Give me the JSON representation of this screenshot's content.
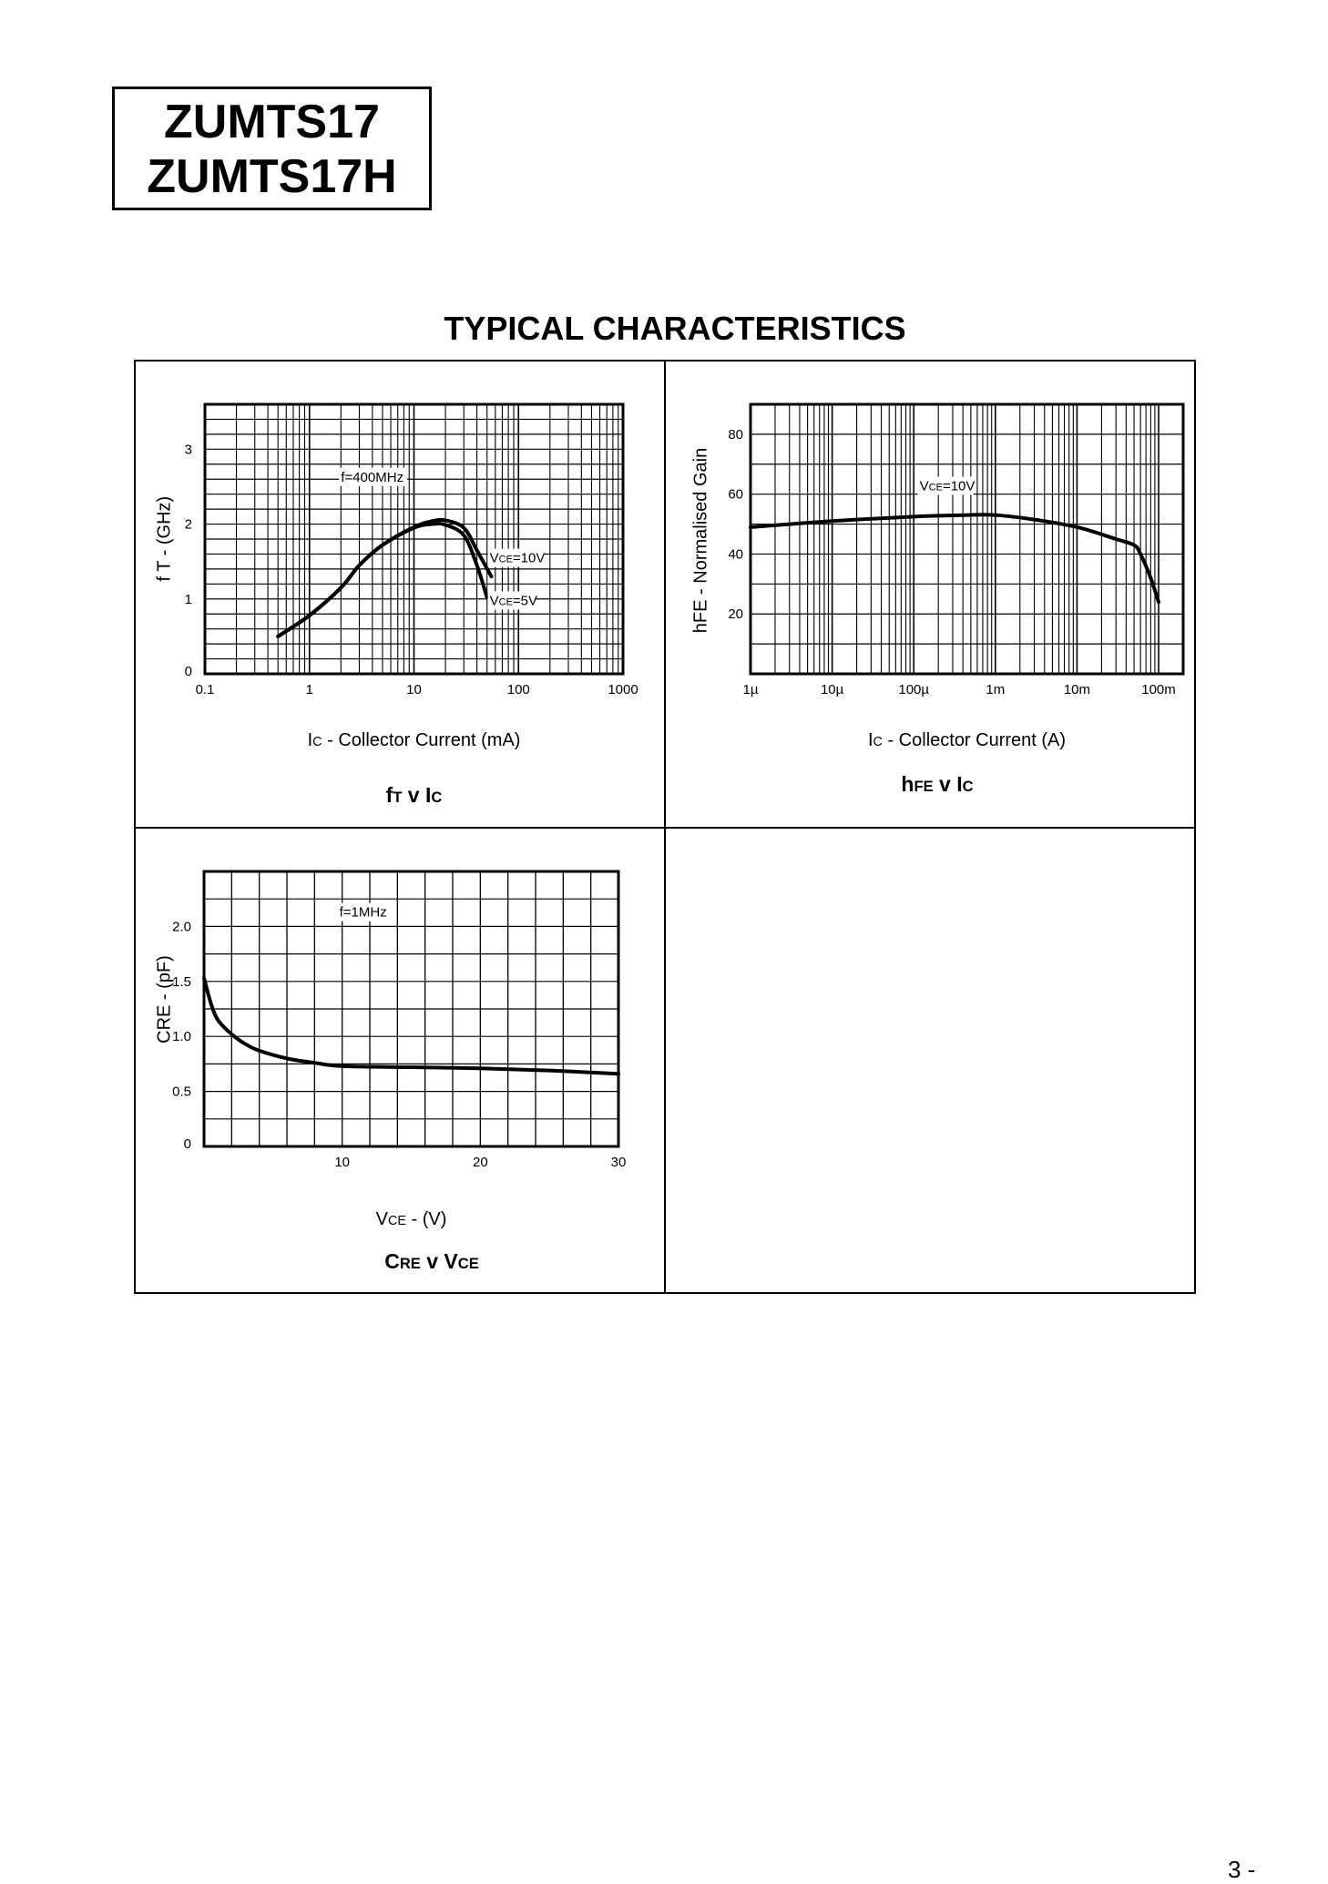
{
  "header": {
    "part_1": "ZUMTS17",
    "part_2": "ZUMTS17H"
  },
  "section_title": "TYPICAL CHARACTERISTICS",
  "page_number": "3 -",
  "chart_data": [
    {
      "type": "line",
      "title": {
        "a": "f",
        "a_sub": "T",
        "b": " v I",
        "b_sub": "C"
      },
      "xlabel": {
        "a": "I",
        "a_sub": "C",
        "b": " - Collector Current (mA)"
      },
      "ylabel": "f T - (GHz)",
      "xscale": "log",
      "xlim": [
        0.1,
        1000
      ],
      "ylim": [
        0,
        3.6
      ],
      "ygrid": 0.2,
      "xticks": [
        {
          "v": 0.1,
          "label": "0.1"
        },
        {
          "v": 1,
          "label": "1"
        },
        {
          "v": 10,
          "label": "10"
        },
        {
          "v": 100,
          "label": "100"
        },
        {
          "v": 1000,
          "label": "1000"
        }
      ],
      "yticks": [
        {
          "v": 0,
          "label": "0"
        },
        {
          "v": 1,
          "label": "1"
        },
        {
          "v": 2,
          "label": "2"
        },
        {
          "v": 3,
          "label": "3"
        }
      ],
      "series": [
        {
          "name": "VCE=5V",
          "x": [
            0.5,
            1,
            2,
            3,
            5,
            10,
            15,
            20,
            30,
            40,
            50
          ],
          "y": [
            0.5,
            0.78,
            1.15,
            1.45,
            1.72,
            1.95,
            2.0,
            1.99,
            1.85,
            1.45,
            1.02
          ]
        },
        {
          "name": "VCE=10V",
          "x": [
            0.5,
            1,
            2,
            3,
            5,
            10,
            15,
            20,
            30,
            40,
            55
          ],
          "y": [
            0.5,
            0.78,
            1.15,
            1.45,
            1.72,
            1.96,
            2.04,
            2.05,
            1.95,
            1.65,
            1.3
          ]
        }
      ],
      "annotations": [
        {
          "a": "f=400MHz",
          "a_sub": "",
          "b": "",
          "x": 2.0,
          "y": 2.63
        },
        {
          "a": "V",
          "a_sub": "CE",
          "b": "=10V",
          "x": 53,
          "y": 1.55
        },
        {
          "a": "V",
          "a_sub": "CE",
          "b": "=5V",
          "x": 53,
          "y": 0.98
        }
      ]
    },
    {
      "type": "line",
      "title": {
        "a": "h",
        "a_sub": "FE",
        "b": " v I",
        "b_sub": "C"
      },
      "xlabel": {
        "a": "I",
        "a_sub": "C",
        "b": " - Collector Current (A)"
      },
      "ylabel": "hFE - Normalised Gain",
      "xscale": "log",
      "xlim": [
        1e-06,
        0.2
      ],
      "ylim": [
        0,
        90
      ],
      "ygrid": 10,
      "xticks": [
        {
          "v": 1e-06,
          "label": "1µ"
        },
        {
          "v": 1e-05,
          "label": "10µ"
        },
        {
          "v": 0.0001,
          "label": "100µ"
        },
        {
          "v": 0.001,
          "label": "1m"
        },
        {
          "v": 0.01,
          "label": "10m"
        },
        {
          "v": 0.1,
          "label": "100m"
        }
      ],
      "yticks": [
        {
          "v": 20,
          "label": "20"
        },
        {
          "v": 40,
          "label": "40"
        },
        {
          "v": 60,
          "label": "60"
        },
        {
          "v": 80,
          "label": "80"
        }
      ],
      "series": [
        {
          "name": "VCE=10V",
          "x": [
            1e-06,
            1e-05,
            0.0001,
            0.0004,
            0.001,
            0.003,
            0.01,
            0.03,
            0.05,
            0.06,
            0.08,
            0.1
          ],
          "y": [
            49,
            51,
            52.5,
            53,
            53,
            51.5,
            49,
            45,
            43,
            40,
            32,
            24
          ]
        }
      ],
      "annotations": [
        {
          "a": "V",
          "a_sub": "CE",
          "b": "=10V",
          "x": 0.000118,
          "y": 62.8
        }
      ]
    },
    {
      "type": "line",
      "title": {
        "a": "C",
        "a_sub": "RE",
        "b": " v V",
        "b_sub": "CE"
      },
      "xlabel": {
        "a": "V",
        "a_sub": "CE",
        "b": " -  (V)"
      },
      "ylabel": "CRE - (pF)",
      "xscale": "linear",
      "xlim": [
        0,
        30
      ],
      "ylim": [
        0,
        2.5
      ],
      "ygrid": 0.25,
      "xgrid": 2,
      "xticks": [
        {
          "v": 10,
          "label": "10"
        },
        {
          "v": 20,
          "label": "20"
        },
        {
          "v": 30,
          "label": "30"
        }
      ],
      "yticks": [
        {
          "v": 0,
          "label": "0"
        },
        {
          "v": 0.5,
          "label": "0.5"
        },
        {
          "v": 1,
          "label": "1.0"
        },
        {
          "v": 1.5,
          "label": "1.5"
        },
        {
          "v": 2,
          "label": "2.0"
        }
      ],
      "series": [
        {
          "name": "CRE",
          "x": [
            0,
            0.5,
            1,
            2,
            3,
            4,
            6,
            8,
            10,
            15,
            20,
            25,
            30
          ],
          "y": [
            1.53,
            1.3,
            1.15,
            1.02,
            0.93,
            0.87,
            0.8,
            0.76,
            0.73,
            0.72,
            0.71,
            0.69,
            0.66
          ]
        }
      ],
      "annotations": [
        {
          "a": "f=1MHz",
          "a_sub": "",
          "b": "",
          "x": 9.8,
          "y": 2.13
        }
      ]
    }
  ]
}
